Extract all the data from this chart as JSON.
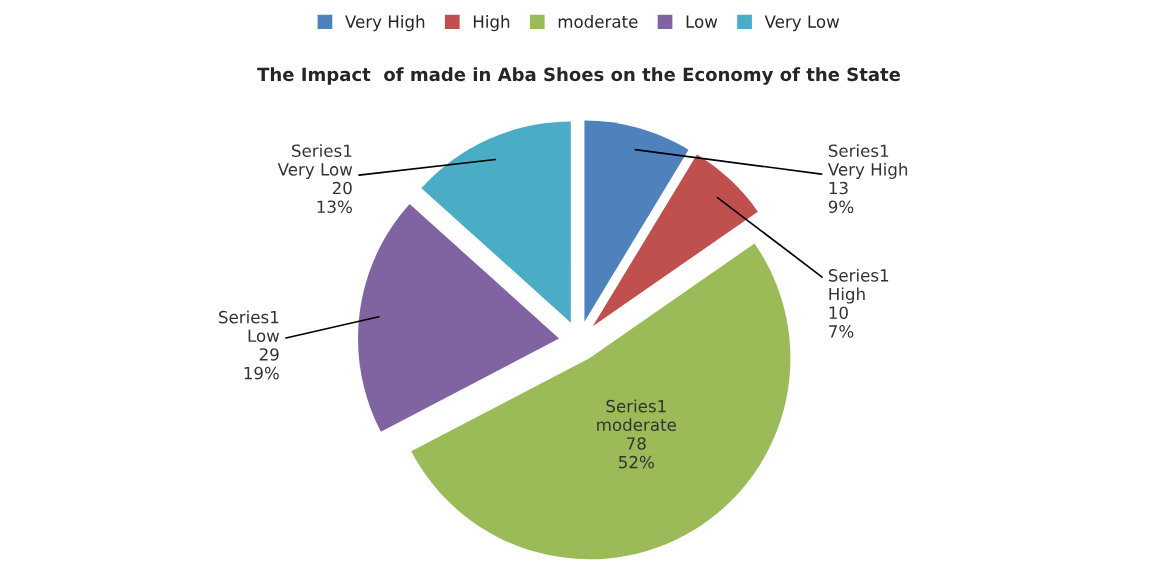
{
  "chart_data": {
    "type": "pie",
    "title": "The Impact  of made in Aba Shoes on the Economy of the State",
    "categories": [
      "Very High",
      "High",
      "moderate",
      "Low",
      "Very Low"
    ],
    "series": [
      {
        "name": "Series1",
        "values": [
          13,
          10,
          78,
          29,
          20
        ],
        "colors": [
          "#4f81bd",
          "#c0504d",
          "#9bbb59",
          "#8064a2",
          "#4bacc6"
        ],
        "value_labels": [
          "13\n9%",
          "10\n7%",
          "78\n52%",
          "29\n19%",
          "20\n13%"
        ]
      }
    ],
    "legend": "top"
  }
}
